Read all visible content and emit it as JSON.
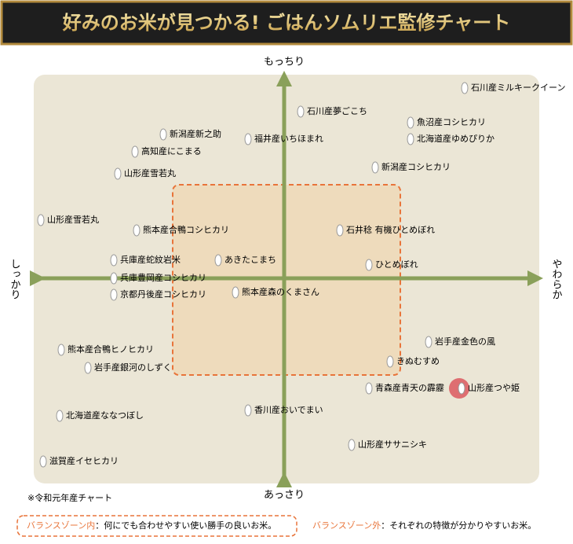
{
  "header": {
    "title": "好みのお米が見つかる! ごはんソムリエ監修チャート"
  },
  "axes": {
    "top": "もっちり",
    "bottom": "あっさり",
    "left": "しっかり",
    "right": "やわらか"
  },
  "items": [
    {
      "label": "石川産ミルキークイーン"
    },
    {
      "label": "石川産夢ごこち"
    },
    {
      "label": "魚沼産コシヒカリ"
    },
    {
      "label": "新潟産新之助"
    },
    {
      "label": "福井産いちほまれ"
    },
    {
      "label": "北海道産ゆめぴりか"
    },
    {
      "label": "高知産にこまる"
    },
    {
      "label": "新潟産コシヒカリ"
    },
    {
      "label": "山形産雪若丸"
    },
    {
      "label": "山形産雪若丸"
    },
    {
      "label": "熊本産合鴨コシヒカリ"
    },
    {
      "label": "石井稔 有機ひとめぼれ"
    },
    {
      "label": "兵庫産蛇紋岩米"
    },
    {
      "label": "あきたこまち"
    },
    {
      "label": "ひとめぼれ"
    },
    {
      "label": "兵庫豊岡産コシヒカリ"
    },
    {
      "label": "京都丹後産コシヒカリ"
    },
    {
      "label": "熊本産森のくまさん"
    },
    {
      "label": "岩手産金色の風"
    },
    {
      "label": "熊本産合鴨ヒノヒカリ"
    },
    {
      "label": "きぬむすめ"
    },
    {
      "label": "岩手産銀河のしずく"
    },
    {
      "label": "青森産青天の霹靂"
    },
    {
      "label": "山形産つや姫"
    },
    {
      "label": "北海道産ななつぼし"
    },
    {
      "label": "香川産おいでまい"
    },
    {
      "label": "山形産ササニシキ"
    },
    {
      "label": "滋賀産イセヒカリ"
    }
  ],
  "note": "※令和元年産チャート",
  "legend": {
    "inside_name": "バランスゾーン内",
    "inside_text": "：何にでも合わせやすい使い勝手の良いお米。",
    "outside_name": "バランスゾーン外",
    "outside_text": "：それぞれの特徴が分かりやすいお米。"
  }
}
